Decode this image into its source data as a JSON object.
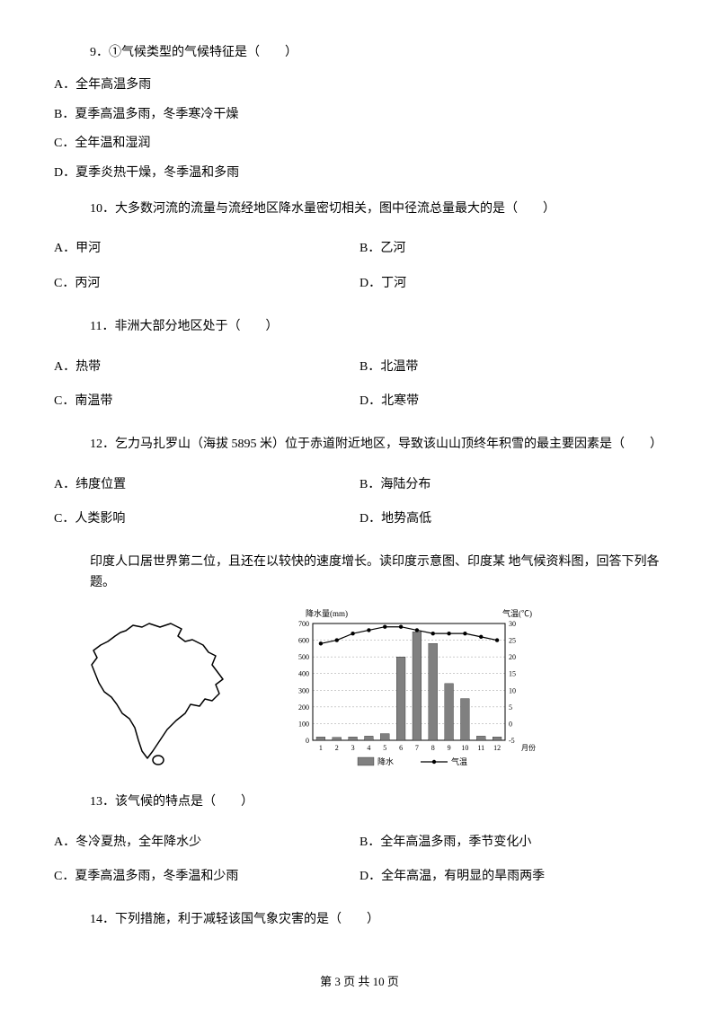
{
  "q9": {
    "stem": "9．①气候类型的气候特征是（　　）",
    "a": "A．全年高温多雨",
    "b": "B．夏季高温多雨，冬季寒冷干燥",
    "c": "C．全年温和湿润",
    "d": "D．夏季炎热干燥，冬季温和多雨"
  },
  "q10": {
    "stem": "10．大多数河流的流量与流经地区降水量密切相关，图中径流总量最大的是（　　）",
    "a": "A．甲河",
    "b": "B．乙河",
    "c": "C．丙河",
    "d": "D．丁河"
  },
  "q11": {
    "stem": "11．非洲大部分地区处于（　　）",
    "a": "A．热带",
    "b": "B．北温带",
    "c": "C．南温带",
    "d": "D．北寒带"
  },
  "q12": {
    "stem": "12．乞力马扎罗山（海拔 5895 米）位于赤道附近地区，导致该山山顶终年积雪的最主要因素是（　　）",
    "a": "A．纬度位置",
    "b": "B．海陆分布",
    "c": "C．人类影响",
    "d": "D．地势高低"
  },
  "intro": "印度人口居世界第二位，且还在以较快的速度增长。读印度示意图、印度某 地气候资料图，回答下列各题。",
  "chart": {
    "title_left": "降水量(mm)",
    "title_right": "气温(℃)",
    "y_left_max": 700,
    "y_left_step": 100,
    "y_right_max": 30,
    "y_right_min": -5,
    "y_right_step": 5,
    "months": [
      "1",
      "2",
      "3",
      "4",
      "5",
      "6",
      "7",
      "8",
      "9",
      "10",
      "11",
      "12"
    ],
    "x_label": "月份",
    "precip_values": [
      20,
      18,
      20,
      25,
      40,
      500,
      650,
      580,
      340,
      250,
      25,
      20
    ],
    "temp_values": [
      24,
      25,
      27,
      28,
      29,
      29,
      28,
      27,
      27,
      27,
      26,
      25
    ],
    "legend_precip": "降水",
    "legend_temp": "气温",
    "bar_color": "#808080",
    "line_color": "#000000",
    "marker_color": "#000000",
    "grid_color": "#999999",
    "background_color": "#ffffff",
    "axis_color": "#000000",
    "label_fontsize": 9,
    "tick_fontsize": 8
  },
  "map": {
    "outline_color": "#000000",
    "fill_color": "#ffffff",
    "stroke_width": 1.5
  },
  "q13": {
    "stem": "13．该气候的特点是（　　）",
    "a": "A．冬冷夏热，全年降水少",
    "b": "B．全年高温多雨，季节变化小",
    "c": "C．夏季高温多雨，冬季温和少雨",
    "d": "D．全年高温，有明显的旱雨两季"
  },
  "q14": {
    "stem": "14．下列措施，利于减轻该国气象灾害的是（　　）"
  },
  "footer": "第 3 页 共 10 页"
}
